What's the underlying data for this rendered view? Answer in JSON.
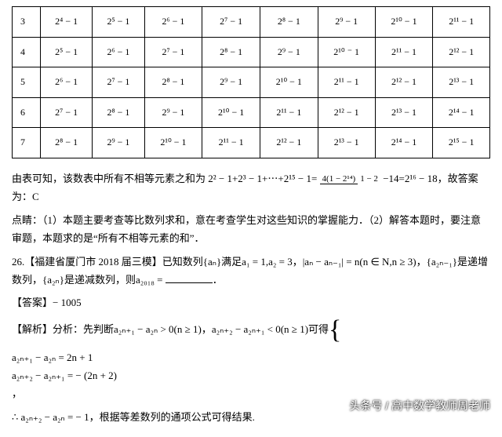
{
  "table": {
    "rows": [
      [
        "3",
        "2⁴ − 1",
        "2⁵ − 1",
        "2⁶ − 1",
        "2⁷ − 1",
        "2⁸ − 1",
        "2⁹ − 1",
        "2¹⁰ − 1",
        "2¹¹ − 1"
      ],
      [
        "4",
        "2⁵ − 1",
        "2⁶ − 1",
        "2⁷ − 1",
        "2⁸ − 1",
        "2⁹ − 1",
        "2¹⁰ ⁻ 1",
        "2¹¹ − 1",
        "2¹² − 1"
      ],
      [
        "5",
        "2⁶ − 1",
        "2⁷ − 1",
        "2⁸ − 1",
        "2⁹ − 1",
        "2¹⁰ − 1",
        "2¹¹ − 1",
        "2¹² − 1",
        "2¹³ − 1"
      ],
      [
        "6",
        "2⁷ − 1",
        "2⁸ − 1",
        "2⁹ − 1",
        "2¹⁰ − 1",
        "2¹¹ − 1",
        "2¹² − 1",
        "2¹³ − 1",
        "2¹⁴ − 1"
      ],
      [
        "7",
        "2⁸ − 1",
        "2⁹ − 1",
        "2¹⁰ − 1",
        "2¹¹ − 1",
        "2¹² − 1",
        "2¹³ − 1",
        "2¹⁴ − 1",
        "2¹⁵ − 1"
      ]
    ]
  },
  "p1a": "由表可知，该数表中所有不相等元素之和为 2² − 1+2³ − 1+⋯+2¹⁵ − 1=",
  "frac": {
    "n": "4(1 − 2¹⁴)",
    "d": "1 − 2"
  },
  "p1b": " −14=2¹⁶ − 18，故答案为：C",
  "p2": "点睛：（1）本题主要考查等比数列求和，意在考查学生对这些知识的掌握能力．（2）解答本题时，要注意审题，本题求的是“所有不相等元素的和”．",
  "q26a": "26.【福建省厦门市 2018 届三模】已知数列{aₙ}满足a₁ = 1,a₂ = 3，|aₙ − aₙ₋₁| = n(n ∈ N,n ≥ 3)，{a₂ₙ₋₁}是递增数列，{a₂ₙ}是递减数列，则a₂₀₁₈ = ",
  "ans_label": "【答案】",
  "ans_val": "− 1005",
  "sol_a": "【解析】分析：先判断a₂ₙ₊₁ − a₂ₙ > 0(n ≥ 1)，a₂ₙ₊₂ − a₂ₙ₊₁ < 0(n ≥ 1)可得",
  "case1": "a₂ₙ₊₁ − a₂ₙ = 2n + 1",
  "case2": "a₂ₙ₊₂ − a₂ₙ₊₁ = − (2n + 2)",
  "sol_b": "，",
  "sol_c": "∴ a₂ₙ₊₂ − a₂ₙ = − 1，根据等差数列的通项公式可得结果.",
  "wm": "头条号 / 高中数学教师周老师"
}
